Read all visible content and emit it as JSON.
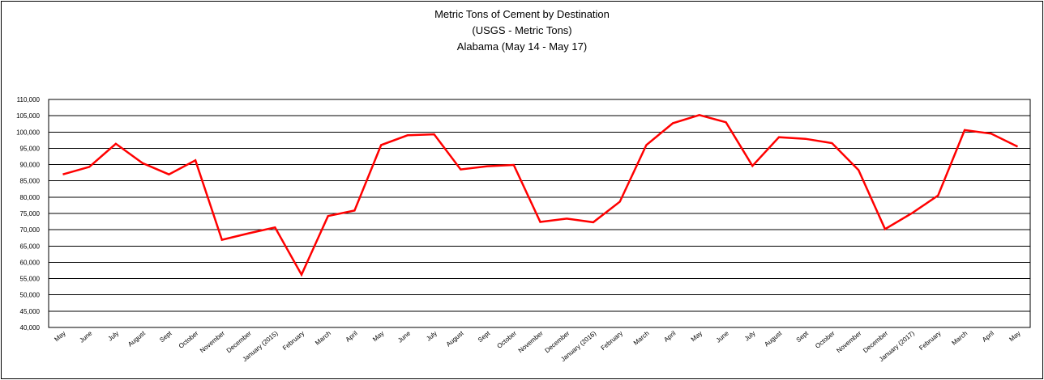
{
  "chart_data": {
    "type": "line",
    "title": "Metric Tons of Cement by Destination",
    "subtitle": "(USGS - Metric Tons)",
    "subtitle2": "Alabama (May 14 - May 17)",
    "xlabel": "",
    "ylabel": "",
    "ylim": [
      40000,
      110000
    ],
    "ytick_step": 5000,
    "grid": true,
    "legend": "none",
    "line_color": "#ff0000",
    "categories": [
      "May",
      "June",
      "July",
      "August",
      "Sept",
      "October",
      "November",
      "December",
      "January (2015)",
      "February",
      "March",
      "April",
      "May",
      "June",
      "July",
      "August",
      "Sept",
      "October",
      "November",
      "December",
      "January (2016)",
      "February",
      "March",
      "April",
      "May",
      "June",
      "July",
      "August",
      "Sept",
      "October",
      "November",
      "December",
      "January (2017)",
      "February",
      "March",
      "April",
      "May"
    ],
    "series": [
      {
        "values": [
          87000,
          89300,
          96400,
          90500,
          87000,
          91300,
          66900,
          68900,
          70700,
          56200,
          74200,
          75900,
          96000,
          99000,
          99300,
          88500,
          89500,
          89900,
          72400,
          73400,
          72300,
          78600,
          96000,
          102700,
          105200,
          103000,
          89600,
          98400,
          97900,
          96600,
          88300,
          70200,
          75000,
          80500,
          100600,
          99500,
          95500
        ]
      }
    ]
  }
}
